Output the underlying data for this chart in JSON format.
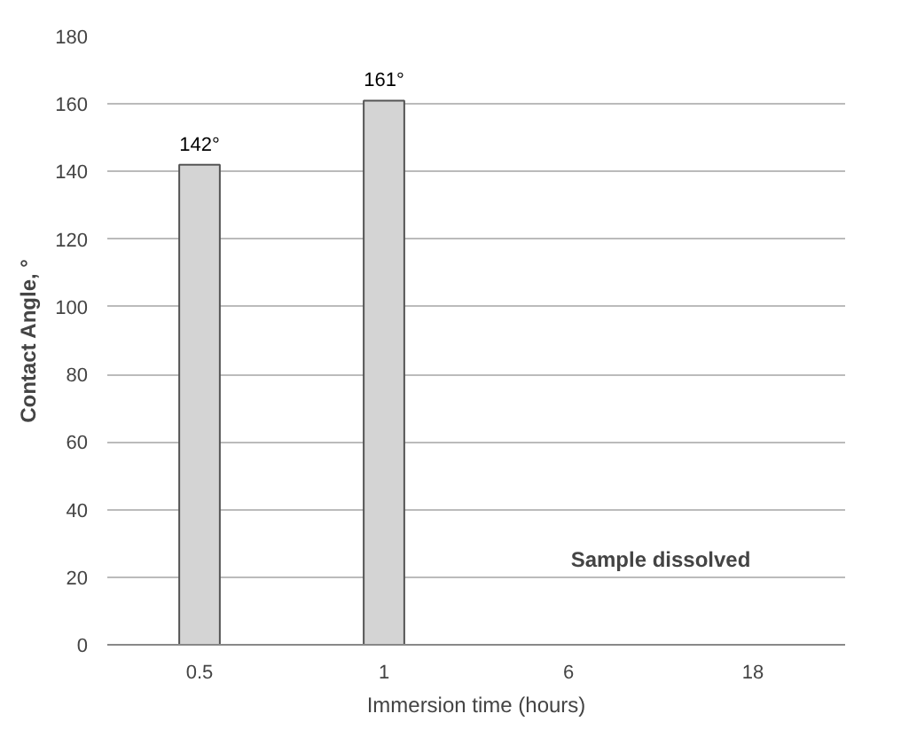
{
  "chart_data": {
    "type": "bar",
    "xlabel": "Immersion time (hours)",
    "ylabel": "Contact Angle, °",
    "categories": [
      "0.5",
      "1",
      "6",
      "18"
    ],
    "values": [
      142,
      161,
      null,
      null
    ],
    "value_labels": [
      "142°",
      "161°",
      null,
      null
    ],
    "color": "#d4d4d4",
    "ylim": [
      0,
      180
    ],
    "yticks": [
      0,
      20,
      40,
      60,
      80,
      100,
      120,
      140,
      160,
      180
    ],
    "grid": "y",
    "annotations": [
      "Sample dissolved"
    ]
  }
}
